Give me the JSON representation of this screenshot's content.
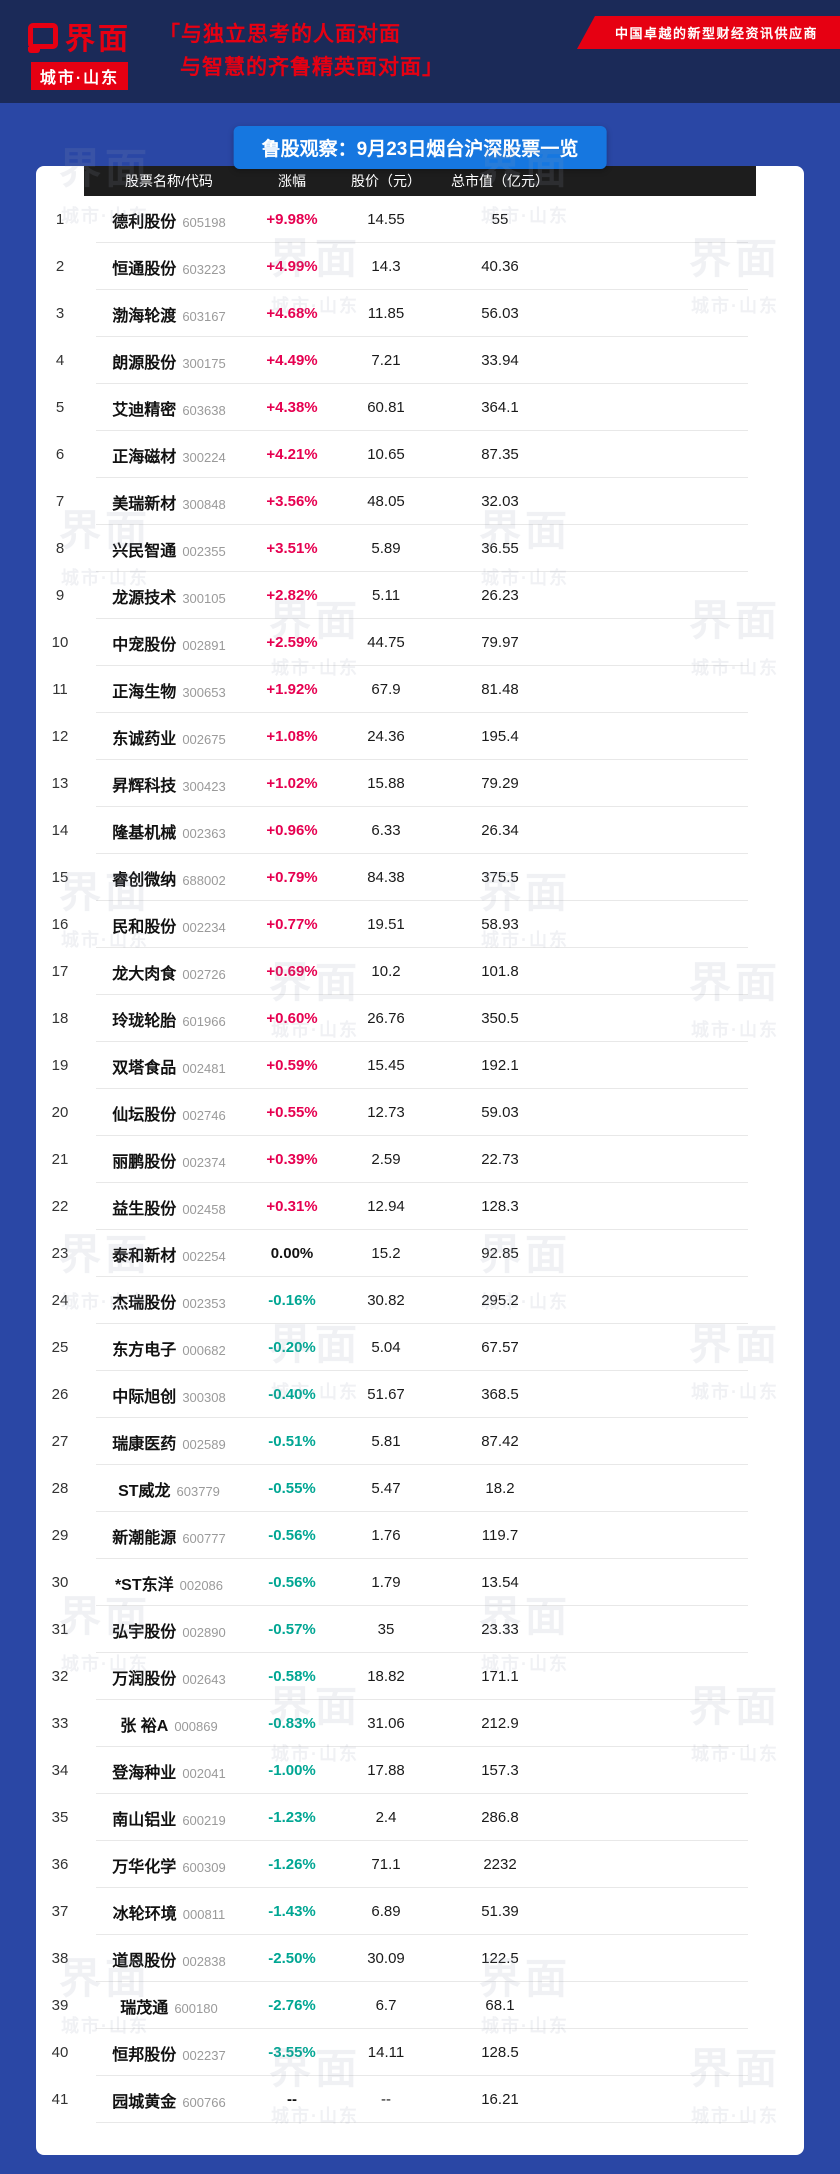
{
  "colors": {
    "accent_red": "#e60012",
    "title_blue": "#1677e0",
    "page_blue": "#2a47a5",
    "masthead_navy": "#1b2a58",
    "up": "#e60050",
    "down": "#00a693"
  },
  "masthead": {
    "logo_text": "界面",
    "logo_sub": "城市·山东",
    "slogan_line1": "「与独立思考的人面对面",
    "slogan_line2": "与智慧的齐鲁精英面对面」",
    "ribbon": "中国卓越的新型财经资讯供应商"
  },
  "watermark": {
    "line1": "界面",
    "line2": "城市·山东"
  },
  "card": {
    "title": "鲁股观察：9月23日烟台沪深股票一览"
  },
  "chart_data": {
    "type": "table",
    "title": "鲁股观察：9月23日烟台沪深股票一览",
    "columns": [
      "股票名称/代码",
      "涨幅",
      "股价（元）",
      "总市值（亿元）"
    ],
    "rows": [
      {
        "n": "1",
        "name": "德利股份",
        "code": "605198",
        "change": "+9.98%",
        "dir": "up",
        "price": "14.55",
        "cap": "55"
      },
      {
        "n": "2",
        "name": "恒通股份",
        "code": "603223",
        "change": "+4.99%",
        "dir": "up",
        "price": "14.3",
        "cap": "40.36"
      },
      {
        "n": "3",
        "name": "渤海轮渡",
        "code": "603167",
        "change": "+4.68%",
        "dir": "up",
        "price": "11.85",
        "cap": "56.03"
      },
      {
        "n": "4",
        "name": "朗源股份",
        "code": "300175",
        "change": "+4.49%",
        "dir": "up",
        "price": "7.21",
        "cap": "33.94"
      },
      {
        "n": "5",
        "name": "艾迪精密",
        "code": "603638",
        "change": "+4.38%",
        "dir": "up",
        "price": "60.81",
        "cap": "364.1"
      },
      {
        "n": "6",
        "name": "正海磁材",
        "code": "300224",
        "change": "+4.21%",
        "dir": "up",
        "price": "10.65",
        "cap": "87.35"
      },
      {
        "n": "7",
        "name": "美瑞新材",
        "code": "300848",
        "change": "+3.56%",
        "dir": "up",
        "price": "48.05",
        "cap": "32.03"
      },
      {
        "n": "8",
        "name": "兴民智通",
        "code": "002355",
        "change": "+3.51%",
        "dir": "up",
        "price": "5.89",
        "cap": "36.55"
      },
      {
        "n": "9",
        "name": "龙源技术",
        "code": "300105",
        "change": "+2.82%",
        "dir": "up",
        "price": "5.11",
        "cap": "26.23"
      },
      {
        "n": "10",
        "name": "中宠股份",
        "code": "002891",
        "change": "+2.59%",
        "dir": "up",
        "price": "44.75",
        "cap": "79.97"
      },
      {
        "n": "11",
        "name": "正海生物",
        "code": "300653",
        "change": "+1.92%",
        "dir": "up",
        "price": "67.9",
        "cap": "81.48"
      },
      {
        "n": "12",
        "name": "东诚药业",
        "code": "002675",
        "change": "+1.08%",
        "dir": "up",
        "price": "24.36",
        "cap": "195.4"
      },
      {
        "n": "13",
        "name": "昇辉科技",
        "code": "300423",
        "change": "+1.02%",
        "dir": "up",
        "price": "15.88",
        "cap": "79.29"
      },
      {
        "n": "14",
        "name": "隆基机械",
        "code": "002363",
        "change": "+0.96%",
        "dir": "up",
        "price": "6.33",
        "cap": "26.34"
      },
      {
        "n": "15",
        "name": "睿创微纳",
        "code": "688002",
        "change": "+0.79%",
        "dir": "up",
        "price": "84.38",
        "cap": "375.5"
      },
      {
        "n": "16",
        "name": "民和股份",
        "code": "002234",
        "change": "+0.77%",
        "dir": "up",
        "price": "19.51",
        "cap": "58.93"
      },
      {
        "n": "17",
        "name": "龙大肉食",
        "code": "002726",
        "change": "+0.69%",
        "dir": "up",
        "price": "10.2",
        "cap": "101.8"
      },
      {
        "n": "18",
        "name": "玲珑轮胎",
        "code": "601966",
        "change": "+0.60%",
        "dir": "up",
        "price": "26.76",
        "cap": "350.5"
      },
      {
        "n": "19",
        "name": "双塔食品",
        "code": "002481",
        "change": "+0.59%",
        "dir": "up",
        "price": "15.45",
        "cap": "192.1"
      },
      {
        "n": "20",
        "name": "仙坛股份",
        "code": "002746",
        "change": "+0.55%",
        "dir": "up",
        "price": "12.73",
        "cap": "59.03"
      },
      {
        "n": "21",
        "name": "丽鹏股份",
        "code": "002374",
        "change": "+0.39%",
        "dir": "up",
        "price": "2.59",
        "cap": "22.73"
      },
      {
        "n": "22",
        "name": "益生股份",
        "code": "002458",
        "change": "+0.31%",
        "dir": "up",
        "price": "12.94",
        "cap": "128.3"
      },
      {
        "n": "23",
        "name": "泰和新材",
        "code": "002254",
        "change": "0.00%",
        "dir": "flat",
        "price": "15.2",
        "cap": "92.85"
      },
      {
        "n": "24",
        "name": "杰瑞股份",
        "code": "002353",
        "change": "-0.16%",
        "dir": "down",
        "price": "30.82",
        "cap": "295.2"
      },
      {
        "n": "25",
        "name": "东方电子",
        "code": "000682",
        "change": "-0.20%",
        "dir": "down",
        "price": "5.04",
        "cap": "67.57"
      },
      {
        "n": "26",
        "name": "中际旭创",
        "code": "300308",
        "change": "-0.40%",
        "dir": "down",
        "price": "51.67",
        "cap": "368.5"
      },
      {
        "n": "27",
        "name": "瑞康医药",
        "code": "002589",
        "change": "-0.51%",
        "dir": "down",
        "price": "5.81",
        "cap": "87.42"
      },
      {
        "n": "28",
        "name": "ST威龙",
        "code": "603779",
        "change": "-0.55%",
        "dir": "down",
        "price": "5.47",
        "cap": "18.2"
      },
      {
        "n": "29",
        "name": "新潮能源",
        "code": "600777",
        "change": "-0.56%",
        "dir": "down",
        "price": "1.76",
        "cap": "119.7"
      },
      {
        "n": "30",
        "name": "*ST东洋",
        "code": "002086",
        "change": "-0.56%",
        "dir": "down",
        "price": "1.79",
        "cap": "13.54"
      },
      {
        "n": "31",
        "name": "弘宇股份",
        "code": "002890",
        "change": "-0.57%",
        "dir": "down",
        "price": "35",
        "cap": "23.33"
      },
      {
        "n": "32",
        "name": "万润股份",
        "code": "002643",
        "change": "-0.58%",
        "dir": "down",
        "price": "18.82",
        "cap": "171.1"
      },
      {
        "n": "33",
        "name": "张 裕A",
        "code": "000869",
        "change": "-0.83%",
        "dir": "down",
        "price": "31.06",
        "cap": "212.9"
      },
      {
        "n": "34",
        "name": "登海种业",
        "code": "002041",
        "change": "-1.00%",
        "dir": "down",
        "price": "17.88",
        "cap": "157.3"
      },
      {
        "n": "35",
        "name": "南山铝业",
        "code": "600219",
        "change": "-1.23%",
        "dir": "down",
        "price": "2.4",
        "cap": "286.8"
      },
      {
        "n": "36",
        "name": "万华化学",
        "code": "600309",
        "change": "-1.26%",
        "dir": "down",
        "price": "71.1",
        "cap": "2232"
      },
      {
        "n": "37",
        "name": "冰轮环境",
        "code": "000811",
        "change": "-1.43%",
        "dir": "down",
        "price": "6.89",
        "cap": "51.39"
      },
      {
        "n": "38",
        "name": "道恩股份",
        "code": "002838",
        "change": "-2.50%",
        "dir": "down",
        "price": "30.09",
        "cap": "122.5"
      },
      {
        "n": "39",
        "name": "瑞茂通",
        "code": "600180",
        "change": "-2.76%",
        "dir": "down",
        "price": "6.7",
        "cap": "68.1"
      },
      {
        "n": "40",
        "name": "恒邦股份",
        "code": "002237",
        "change": "-3.55%",
        "dir": "down",
        "price": "14.11",
        "cap": "128.5"
      },
      {
        "n": "41",
        "name": "园城黄金",
        "code": "600766",
        "change": "--",
        "dir": "none",
        "price": "--",
        "cap": "16.21"
      }
    ]
  }
}
